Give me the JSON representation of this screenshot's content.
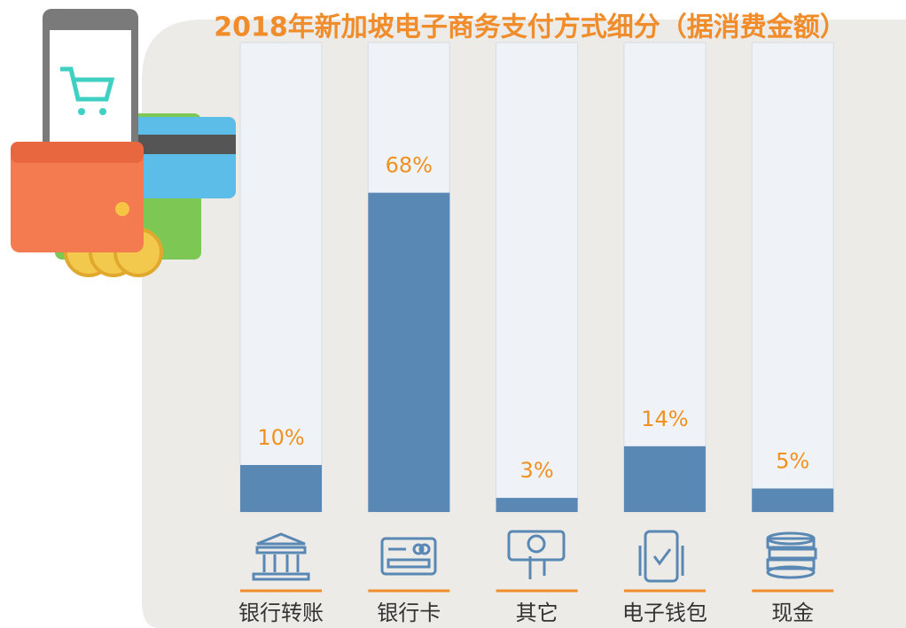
{
  "chart_data": {
    "type": "bar",
    "title": "2018年新加坡电子商务支付方式细分（据消费金额）",
    "categories": [
      "银行转账",
      "银行卡",
      "其它",
      "电子钱包",
      "现金"
    ],
    "values": [
      10,
      68,
      3,
      14,
      5
    ],
    "value_labels": [
      "10%",
      "68%",
      "3%",
      "14%",
      "5%"
    ],
    "color": "#5a88b4",
    "ylim": [
      0,
      100
    ]
  }
}
